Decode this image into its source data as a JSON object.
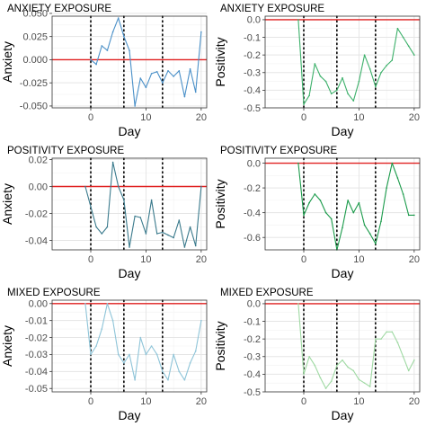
{
  "colors": {
    "panel_background": "#ffffff",
    "grid_major": "#e5e5e5",
    "grid_minor": "#f2f2f2",
    "panel_border": "#333333",
    "reference_line": "#e02020",
    "exposure_line": "#000000"
  },
  "chart_data": [
    {
      "type": "line",
      "title": "ANXIETY EXPOSURE",
      "xlabel": "Day",
      "ylabel": "Anxiety",
      "xlim": [
        -7,
        21
      ],
      "ylim": [
        -0.052,
        0.047
      ],
      "xticks": [
        0,
        10,
        20
      ],
      "xtick_labels": [
        "0",
        "10",
        "20"
      ],
      "yticks": [
        0.05,
        0.025,
        0.0,
        -0.025,
        -0.05
      ],
      "ytick_labels": [
        "0.050",
        "0.025",
        "0.000",
        "-0.025",
        "-0.050"
      ],
      "grid": true,
      "reference_line_y": 0,
      "exposure_days": [
        0,
        6,
        13
      ],
      "series_color": "#4a90c8",
      "x": [
        0,
        1,
        2,
        3,
        4,
        5,
        6,
        7,
        8,
        9,
        10,
        11,
        12,
        13,
        14,
        15,
        16,
        17,
        18,
        19,
        20
      ],
      "values": [
        0.0,
        -0.005,
        0.015,
        0.01,
        0.03,
        0.045,
        0.025,
        0.01,
        -0.05,
        -0.02,
        -0.03,
        -0.015,
        -0.013,
        -0.025,
        -0.012,
        -0.018,
        -0.012,
        -0.04,
        -0.01,
        -0.035,
        0.03
      ]
    },
    {
      "type": "line",
      "title": "ANXIETY EXPOSURE",
      "xlabel": "Day",
      "ylabel": "Positivity",
      "xlim": [
        -7,
        21
      ],
      "ylim": [
        -0.5,
        0.02
      ],
      "xticks": [
        0,
        10,
        20
      ],
      "xtick_labels": [
        "0",
        "10",
        "20"
      ],
      "yticks": [
        0.0,
        -0.1,
        -0.2,
        -0.3,
        -0.4,
        -0.5
      ],
      "ytick_labels": [
        "0.0",
        "-0.1",
        "-0.2",
        "-0.3",
        "-0.4",
        "-0.5"
      ],
      "grid": true,
      "reference_line_y": 0,
      "exposure_days": [
        0,
        6,
        13
      ],
      "series_color": "#3cb06a",
      "x": [
        -1,
        0,
        1,
        2,
        3,
        4,
        5,
        6,
        7,
        8,
        9,
        10,
        11,
        12,
        13,
        14,
        15,
        16,
        17,
        18,
        19,
        20
      ],
      "values": [
        0.0,
        -0.48,
        -0.43,
        -0.25,
        -0.32,
        -0.35,
        -0.42,
        -0.4,
        -0.33,
        -0.42,
        -0.46,
        -0.35,
        -0.2,
        -0.28,
        -0.38,
        -0.3,
        -0.26,
        -0.23,
        -0.05,
        -0.1,
        -0.15,
        -0.2
      ]
    },
    {
      "type": "line",
      "title": "POSITIVITY EXPOSURE",
      "xlabel": "Day",
      "ylabel": "Anxiety",
      "xlim": [
        -7,
        21
      ],
      "ylim": [
        -0.047,
        0.021
      ],
      "xticks": [
        0,
        10,
        20
      ],
      "xtick_labels": [
        "0",
        "10",
        "20"
      ],
      "yticks": [
        0.02,
        0.0,
        -0.02,
        -0.04
      ],
      "ytick_labels": [
        "0.02",
        "0.00",
        "-0.02",
        "-0.04"
      ],
      "grid": true,
      "reference_line_y": 0,
      "exposure_days": [
        0,
        6,
        13
      ],
      "series_color": "#3a7a8c",
      "x": [
        -1,
        0,
        1,
        2,
        3,
        4,
        5,
        6,
        7,
        8,
        9,
        10,
        11,
        12,
        13,
        14,
        15,
        16,
        17,
        18,
        19,
        20
      ],
      "values": [
        0.0,
        -0.015,
        -0.03,
        -0.035,
        -0.03,
        0.018,
        0.0,
        -0.01,
        -0.045,
        -0.022,
        -0.023,
        -0.035,
        -0.01,
        -0.035,
        -0.034,
        -0.036,
        -0.038,
        -0.025,
        -0.045,
        -0.03,
        -0.044,
        0.0
      ]
    },
    {
      "type": "line",
      "title": "POSITIVITY EXPOSURE",
      "xlabel": "Day",
      "ylabel": "Positivity",
      "xlim": [
        -7,
        21
      ],
      "ylim": [
        -0.7,
        0.04
      ],
      "xticks": [
        0,
        10,
        20
      ],
      "xtick_labels": [
        "0",
        "10",
        "20"
      ],
      "yticks": [
        0.0,
        -0.2,
        -0.4,
        -0.6
      ],
      "ytick_labels": [
        "0.0",
        "-0.2",
        "-0.4",
        "-0.6"
      ],
      "grid": true,
      "reference_line_y": 0,
      "exposure_days": [
        0,
        6,
        13
      ],
      "series_color": "#1a9a4a",
      "x": [
        -1,
        0,
        1,
        2,
        3,
        4,
        5,
        6,
        7,
        8,
        9,
        10,
        11,
        12,
        13,
        14,
        15,
        16,
        17,
        18,
        19,
        20
      ],
      "values": [
        0.0,
        -0.42,
        -0.32,
        -0.25,
        -0.3,
        -0.4,
        -0.45,
        -0.7,
        -0.52,
        -0.3,
        -0.4,
        -0.32,
        -0.5,
        -0.57,
        -0.65,
        -0.47,
        -0.2,
        0.0,
        -0.12,
        -0.25,
        -0.42,
        -0.42
      ]
    },
    {
      "type": "line",
      "title": "MIXED EXPOSURE",
      "xlabel": "Day",
      "ylabel": "Anxiety",
      "xlim": [
        -7,
        21
      ],
      "ylim": [
        -0.052,
        0.002
      ],
      "xticks": [
        0,
        10,
        20
      ],
      "xtick_labels": [
        "0",
        "10",
        "20"
      ],
      "yticks": [
        0.0,
        -0.01,
        -0.02,
        -0.03,
        -0.04,
        -0.05
      ],
      "ytick_labels": [
        "0.00",
        "-0.01",
        "-0.02",
        "-0.03",
        "-0.04",
        "-0.05"
      ],
      "grid": true,
      "reference_line_y": 0,
      "exposure_days": [
        0,
        6,
        13
      ],
      "series_color": "#8ec4d8",
      "x": [
        -1,
        0,
        1,
        2,
        3,
        4,
        5,
        6,
        7,
        8,
        9,
        10,
        11,
        12,
        13,
        14,
        15,
        16,
        17,
        18,
        19,
        20
      ],
      "values": [
        0.0,
        -0.03,
        -0.025,
        -0.015,
        -0.0,
        -0.01,
        -0.03,
        -0.035,
        -0.03,
        -0.045,
        -0.02,
        -0.03,
        -0.025,
        -0.03,
        -0.04,
        -0.045,
        -0.03,
        -0.04,
        -0.045,
        -0.035,
        -0.028,
        -0.01
      ]
    },
    {
      "type": "line",
      "title": "MIXED EXPOSURE",
      "xlabel": "Day",
      "ylabel": "Positivity",
      "xlim": [
        -7,
        21
      ],
      "ylim": [
        -0.5,
        0.02
      ],
      "xticks": [
        0,
        10,
        20
      ],
      "xtick_labels": [
        "0",
        "10",
        "20"
      ],
      "yticks": [
        0.0,
        -0.1,
        -0.2,
        -0.3,
        -0.4,
        -0.5
      ],
      "ytick_labels": [
        "0.0",
        "-0.1",
        "-0.2",
        "-0.3",
        "-0.4",
        "-0.5"
      ],
      "grid": true,
      "reference_line_y": 0,
      "exposure_days": [
        0,
        6,
        13
      ],
      "series_color": "#9fd9a3",
      "x": [
        -1,
        0,
        1,
        2,
        3,
        4,
        5,
        6,
        7,
        8,
        9,
        10,
        11,
        12,
        13,
        14,
        15,
        16,
        17,
        18,
        19,
        20
      ],
      "values": [
        0.0,
        -0.4,
        -0.3,
        -0.35,
        -0.42,
        -0.48,
        -0.44,
        -0.35,
        -0.32,
        -0.36,
        -0.38,
        -0.43,
        -0.45,
        -0.47,
        -0.2,
        -0.2,
        -0.16,
        -0.16,
        -0.22,
        -0.3,
        -0.38,
        -0.32
      ]
    }
  ]
}
